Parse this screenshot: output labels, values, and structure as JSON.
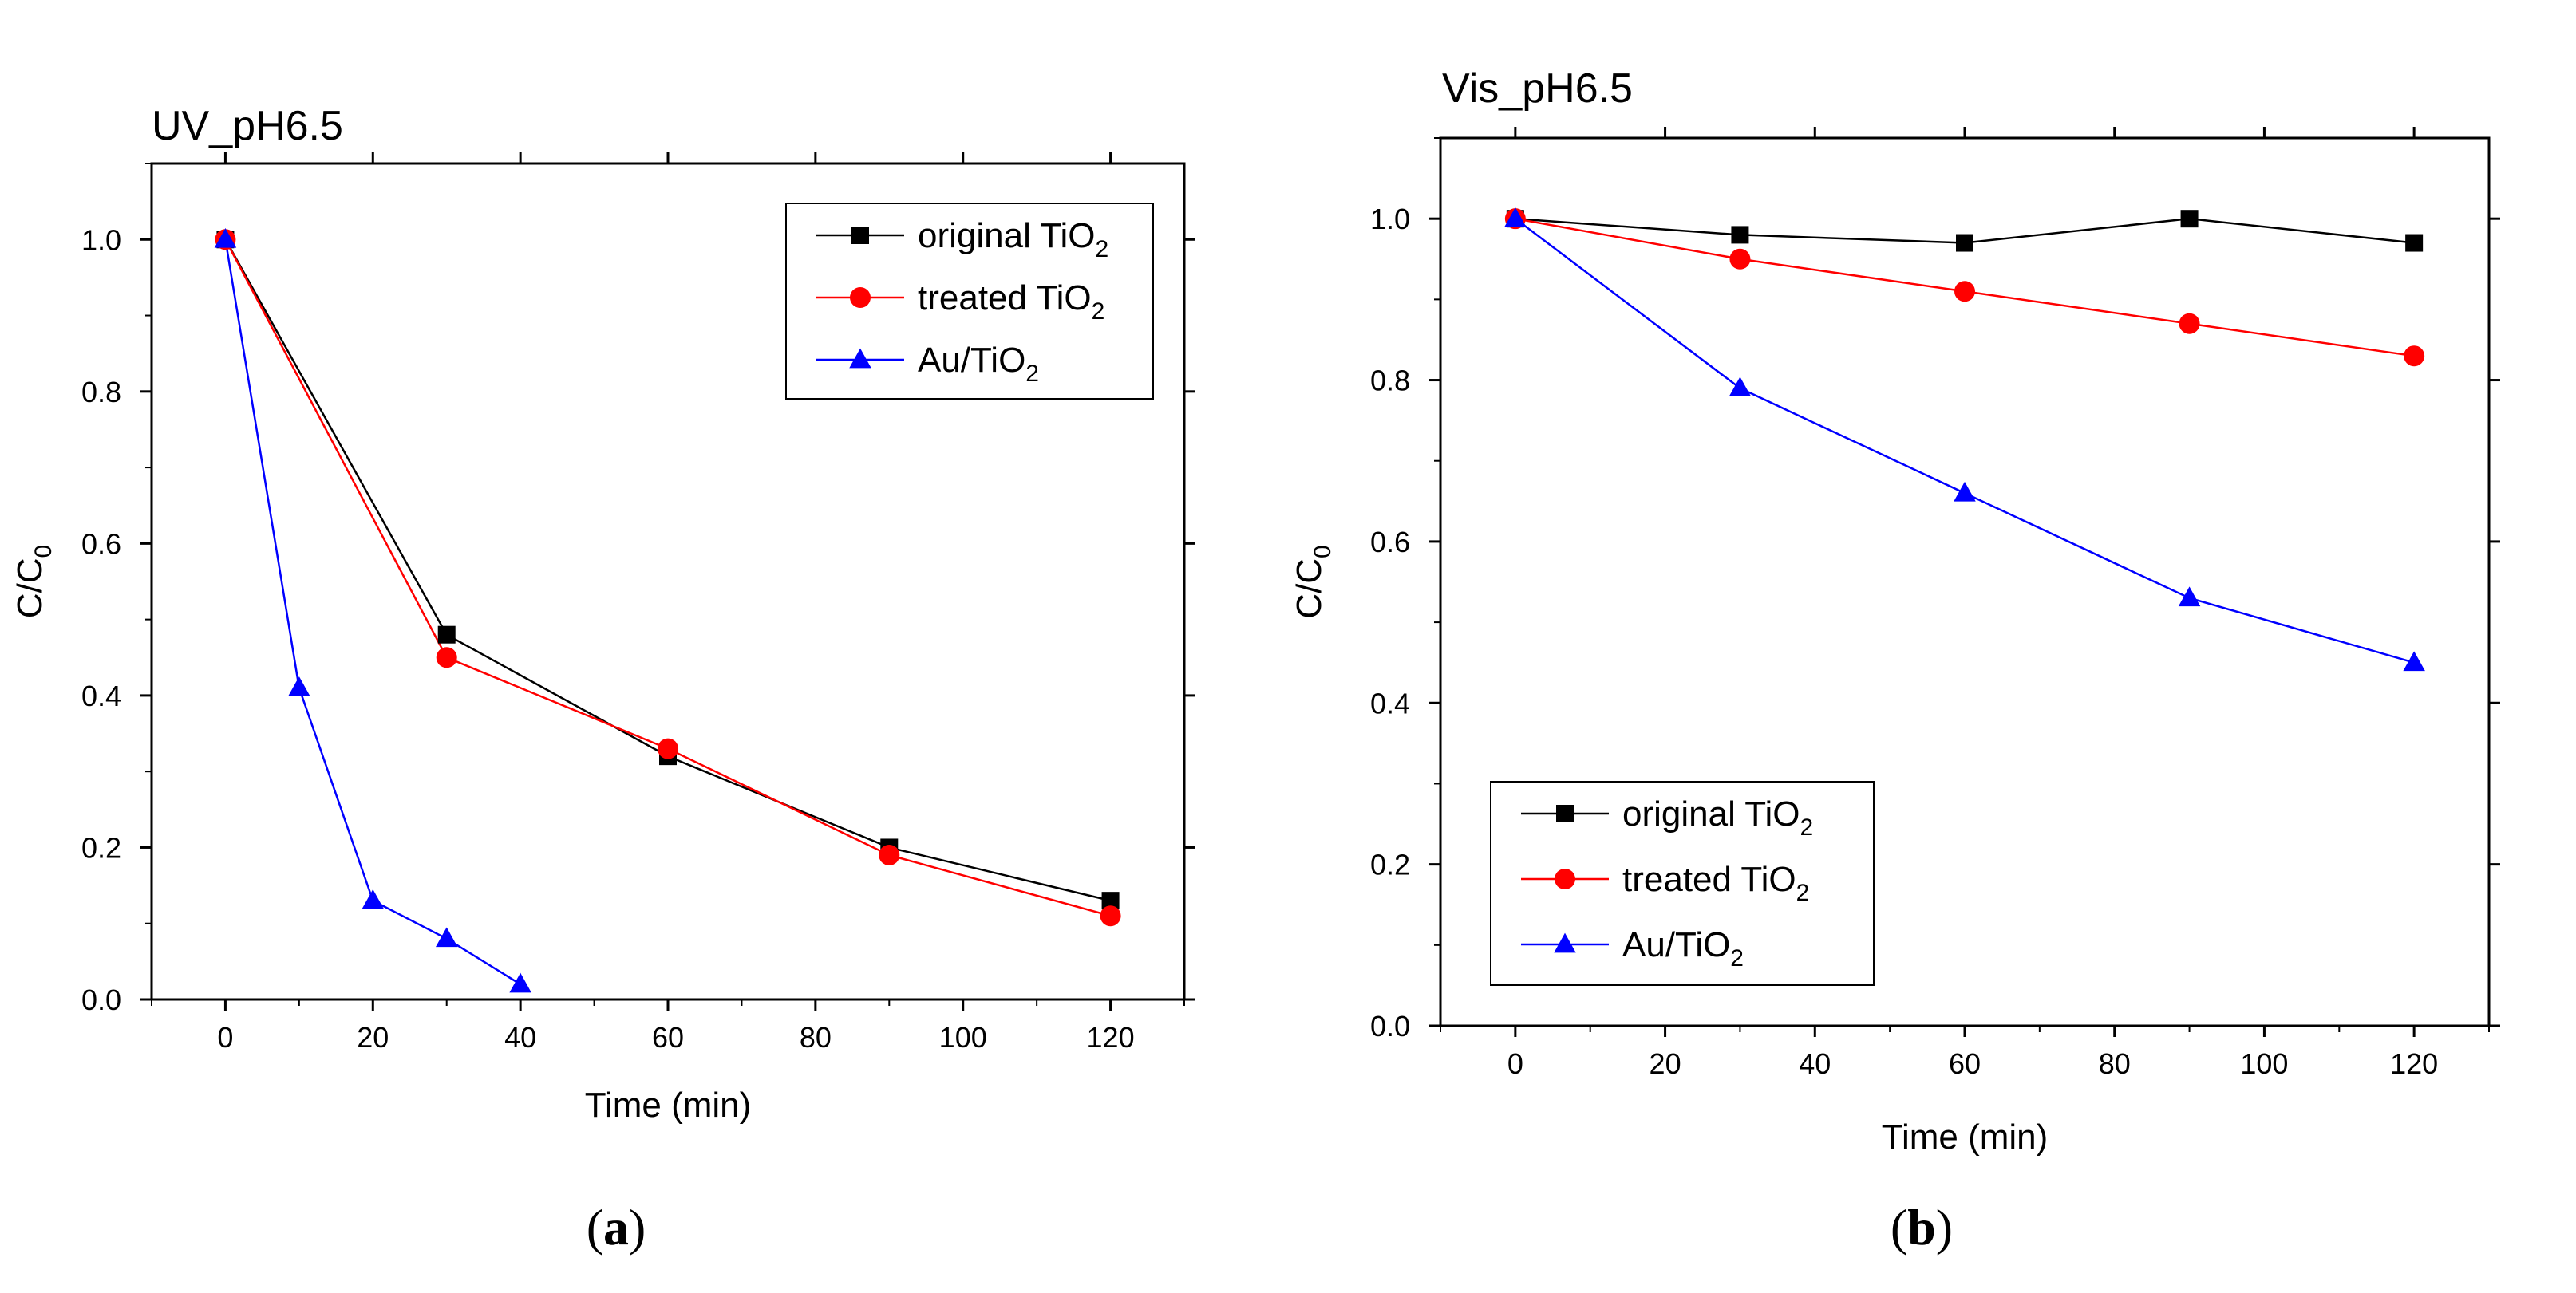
{
  "chart_data": [
    {
      "type": "line",
      "panel": "(a)",
      "panel_letter": "a",
      "title": "UV_pH6.5",
      "xlabel": "Time (min)",
      "ylabel": "C/C",
      "ylabel_sub": "0",
      "xlim": [
        -10,
        130
      ],
      "ylim": [
        0,
        1.1
      ],
      "xticks": [
        0,
        20,
        40,
        60,
        80,
        100,
        120
      ],
      "yticks": [
        0.0,
        0.2,
        0.4,
        0.6,
        0.8,
        1.0
      ],
      "xtick_labels": [
        "0",
        "20",
        "40",
        "60",
        "80",
        "100",
        "120"
      ],
      "ytick_labels": [
        "0.0",
        "0.2",
        "0.4",
        "0.6",
        "0.8",
        "1.0"
      ],
      "legend_position": "top-right",
      "series": [
        {
          "name": "original TiO",
          "sub": "2",
          "color": "#000000",
          "marker": "square",
          "x": [
            0,
            30,
            60,
            90,
            120
          ],
          "y": [
            1.0,
            0.48,
            0.32,
            0.2,
            0.13
          ]
        },
        {
          "name": "treated TiO",
          "sub": "2",
          "color": "#ff0000",
          "marker": "circle",
          "x": [
            0,
            30,
            60,
            90,
            120
          ],
          "y": [
            1.0,
            0.45,
            0.33,
            0.19,
            0.11
          ]
        },
        {
          "name": "Au/TiO",
          "sub": "2",
          "color": "#0000ff",
          "marker": "triangle",
          "x": [
            0,
            10,
            20,
            30,
            40
          ],
          "y": [
            1.0,
            0.41,
            0.13,
            0.08,
            0.02
          ]
        }
      ]
    },
    {
      "type": "line",
      "panel": "(b)",
      "panel_letter": "b",
      "title": "Vis_pH6.5",
      "xlabel": "Time (min)",
      "ylabel": "C/C",
      "ylabel_sub": "0",
      "xlim": [
        -10,
        130
      ],
      "ylim": [
        0,
        1.1
      ],
      "xticks": [
        0,
        20,
        40,
        60,
        80,
        100,
        120
      ],
      "yticks": [
        0.0,
        0.2,
        0.4,
        0.6,
        0.8,
        1.0
      ],
      "xtick_labels": [
        "0",
        "20",
        "40",
        "60",
        "80",
        "100",
        "120"
      ],
      "ytick_labels": [
        "0.0",
        "0.2",
        "0.4",
        "0.6",
        "0.8",
        "1.0"
      ],
      "legend_position": "bottom-left",
      "series": [
        {
          "name": "original TiO",
          "sub": "2",
          "color": "#000000",
          "marker": "square",
          "x": [
            0,
            30,
            60,
            90,
            120
          ],
          "y": [
            1.0,
            0.98,
            0.97,
            1.0,
            0.97
          ]
        },
        {
          "name": "treated TiO",
          "sub": "2",
          "color": "#ff0000",
          "marker": "circle",
          "x": [
            0,
            30,
            60,
            90,
            120
          ],
          "y": [
            1.0,
            0.95,
            0.91,
            0.87,
            0.83
          ]
        },
        {
          "name": "Au/TiO",
          "sub": "2",
          "color": "#0000ff",
          "marker": "triangle",
          "x": [
            0,
            30,
            60,
            90,
            120
          ],
          "y": [
            1.0,
            0.79,
            0.66,
            0.53,
            0.45
          ]
        }
      ]
    }
  ]
}
